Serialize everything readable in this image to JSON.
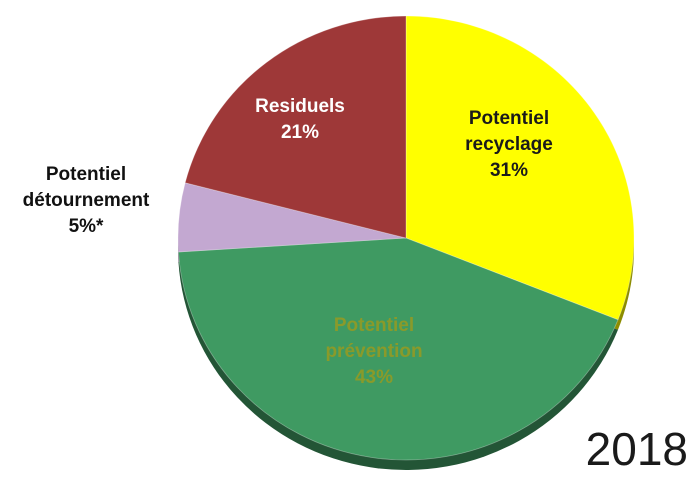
{
  "chart_data": {
    "type": "pie",
    "slices": [
      {
        "label_lines": [
          "Potentiel",
          "recyclage",
          "31%"
        ],
        "value": 31,
        "color": "#ffff00",
        "text_color": "#1a1a1a"
      },
      {
        "label_lines": [
          "Potentiel",
          "prévention",
          "43%"
        ],
        "value": 43,
        "color": "#3f9a62",
        "text_color": "#8a9a2a"
      },
      {
        "label_lines": [
          "Potentiel",
          "détournement",
          "5%*"
        ],
        "value": 5,
        "color": "#c3a8d1",
        "text_color": "#111111"
      },
      {
        "label_lines": [
          "Residuels",
          "21%"
        ],
        "value": 21,
        "color": "#9e3838",
        "text_color": "#ffffff"
      }
    ]
  },
  "year_label": "2018"
}
